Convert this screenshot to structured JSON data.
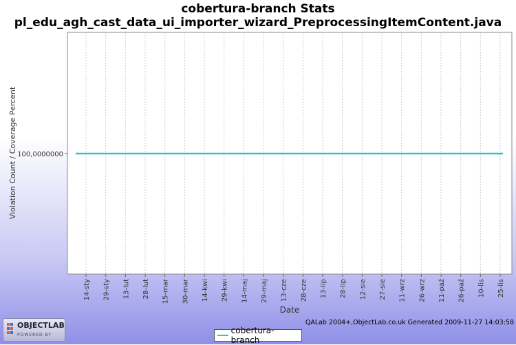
{
  "chart_data": {
    "type": "line",
    "title": "cobertura-branch  Stats",
    "subtitle": "pl_edu_agh_cast_data_ui_importer_wizard_PreprocessingItemContent.java",
    "xlabel": "Date",
    "ylabel": "Violation Count / Coverage Percent",
    "x_ticks": [
      "14-sty",
      "29-sty",
      "13-lut",
      "28-lut",
      "15-mar",
      "30-mar",
      "14-kwi",
      "29-kwi",
      "14-maj",
      "29-maj",
      "13-cze",
      "28-cze",
      "13-lip",
      "28-lip",
      "12-sie",
      "27-sie",
      "11-wrz",
      "26-wrz",
      "11-paź",
      "26-paź",
      "10-lis",
      "25-lis"
    ],
    "y_ticks": [
      "100,0000000"
    ],
    "series": [
      {
        "name": "cobertura-branch",
        "color": "#33c4c4",
        "x_start": "14-sty",
        "x_end": "25-lis",
        "values": [
          100,
          100
        ]
      }
    ],
    "grid": true,
    "legend_position": "bottom"
  },
  "footer": {
    "note": "QALab 2004+,ObjectLab.co.uk Generated 2009-11-27 14:03:58"
  },
  "logo": {
    "main": "OBJECTLAB",
    "sub": "POWERED BY"
  }
}
